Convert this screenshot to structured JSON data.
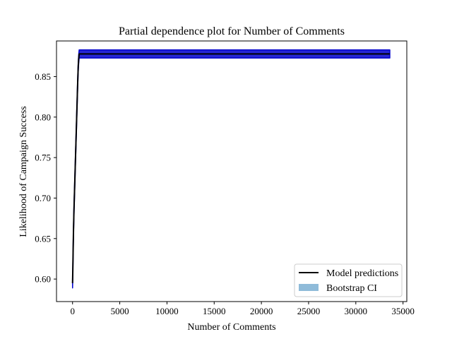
{
  "chart_data": {
    "type": "line",
    "title": "Partial dependence plot for Number of Comments",
    "xlabel": "Number of Comments",
    "ylabel": "Likelihood of Campaign Success",
    "xlim": [
      -1700,
      35400
    ],
    "ylim": [
      0.5722,
      0.894
    ],
    "xticks": [
      0,
      5000,
      10000,
      15000,
      20000,
      25000,
      30000,
      35000
    ],
    "xtick_labels": [
      "0",
      "5000",
      "10000",
      "15000",
      "20000",
      "25000",
      "30000",
      "35000"
    ],
    "yticks": [
      0.6,
      0.65,
      0.7,
      0.75,
      0.8,
      0.85
    ],
    "ytick_labels": [
      "0.60",
      "0.65",
      "0.70",
      "0.75",
      "0.80",
      "0.85"
    ],
    "grid": false,
    "legend_position": "lower right",
    "series": [
      {
        "name": "Model predictions",
        "color": "#000000",
        "x": [
          0,
          30,
          60,
          100,
          150,
          200,
          250,
          300,
          350,
          400,
          450,
          500,
          550,
          600,
          650,
          700,
          33600
        ],
        "y": [
          0.595,
          0.612,
          0.634,
          0.66,
          0.685,
          0.705,
          0.725,
          0.745,
          0.765,
          0.785,
          0.805,
          0.825,
          0.845,
          0.862,
          0.872,
          0.878,
          0.878
        ]
      },
      {
        "name": "Bootstrap CI",
        "color": "#1f77b4",
        "band_color": "#0000cc",
        "x": [
          0,
          30,
          60,
          100,
          150,
          200,
          250,
          300,
          350,
          400,
          450,
          500,
          550,
          600,
          650,
          700,
          33600
        ],
        "lower": [
          0.589,
          0.606,
          0.628,
          0.654,
          0.679,
          0.699,
          0.719,
          0.739,
          0.759,
          0.779,
          0.799,
          0.819,
          0.839,
          0.856,
          0.866,
          0.873,
          0.873
        ],
        "upper": [
          0.6,
          0.617,
          0.639,
          0.665,
          0.69,
          0.71,
          0.73,
          0.75,
          0.77,
          0.79,
          0.81,
          0.83,
          0.85,
          0.867,
          0.877,
          0.883,
          0.883
        ]
      }
    ]
  }
}
